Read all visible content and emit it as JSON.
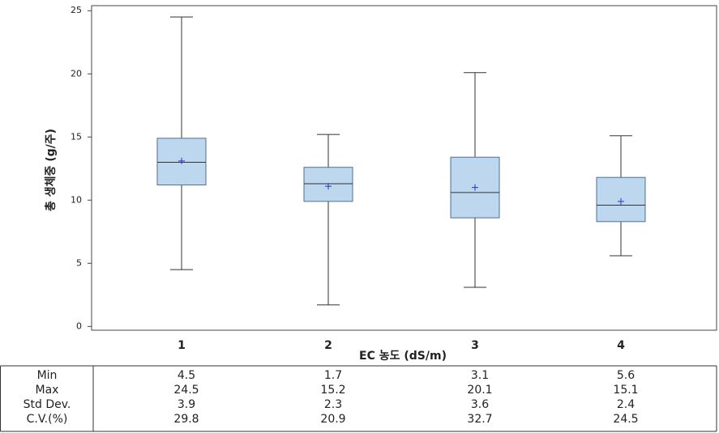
{
  "chart_data": {
    "type": "box",
    "x_label": "EC 농도 (dS/m)",
    "y_label": "총 생체중 (g/주)",
    "categories": [
      "1",
      "2",
      "3",
      "4"
    ],
    "boxes": [
      {
        "q1": 11.2,
        "median": 13.0,
        "q3": 14.9,
        "mean": 13.1
      },
      {
        "q1": 9.9,
        "median": 11.3,
        "q3": 12.6,
        "mean": 11.1
      },
      {
        "q1": 8.6,
        "median": 10.6,
        "q3": 13.4,
        "mean": 11.0
      },
      {
        "q1": 8.3,
        "median": 9.6,
        "q3": 11.8,
        "mean": 9.9
      }
    ],
    "box_color": "#bdd7ee",
    "box_edge": "#4f6f94",
    "whisker_color": "#333333",
    "mean_color": "#2233cc",
    "ylim": [
      -0.3,
      25.4
    ],
    "yticks": [
      0,
      5,
      10,
      15,
      20,
      25
    ]
  },
  "table": {
    "rows": [
      {
        "label": "Min",
        "values": [
          4.5,
          1.7,
          3.1,
          5.6
        ]
      },
      {
        "label": "Max",
        "values": [
          24.5,
          15.2,
          20.1,
          15.1
        ]
      },
      {
        "label": "Std Dev.",
        "values": [
          3.9,
          2.3,
          3.6,
          2.4
        ]
      },
      {
        "label": "C.V.(%)",
        "values": [
          29.8,
          20.9,
          32.7,
          24.5
        ]
      }
    ]
  }
}
